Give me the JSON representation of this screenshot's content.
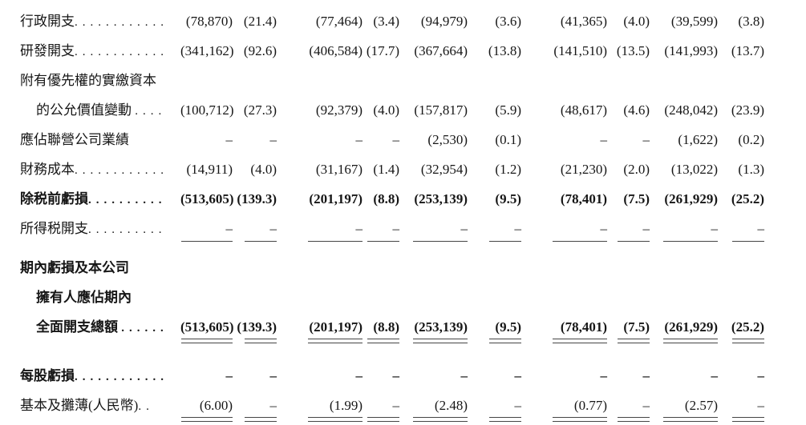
{
  "document": {
    "type": "financial-statement-table",
    "currency_note": "人民幣",
    "colors": {
      "text": "#161616",
      "background": "#ffffff",
      "rule": "#454545"
    }
  },
  "table": {
    "rows": [
      {
        "label": "行政開支",
        "leader": "............",
        "bold": false,
        "indent": false,
        "rule": "none",
        "gap": "",
        "cells": [
          "(78,870)",
          "(21.4)",
          "(77,464)",
          "(3.4)",
          "(94,979)",
          "(3.6)",
          "(41,365)",
          "(4.0)",
          "(39,599)",
          "(3.8)"
        ]
      },
      {
        "label": "研發開支",
        "leader": "............",
        "bold": false,
        "indent": false,
        "rule": "none",
        "gap": "",
        "cells": [
          "(341,162)",
          "(92.6)",
          "(406,584)",
          "(17.7)",
          "(367,664)",
          "(13.8)",
          "(141,510)",
          "(13.5)",
          "(141,993)",
          "(13.7)"
        ]
      },
      {
        "label": "附有優先權的實繳資本",
        "leader": "",
        "bold": false,
        "indent": false,
        "rule": "none",
        "gap": "",
        "cells": [
          "",
          "",
          "",
          "",
          "",
          "",
          "",
          "",
          "",
          ""
        ]
      },
      {
        "label": "的公允價值變動 ",
        "leader": "....",
        "bold": false,
        "indent": true,
        "rule": "none",
        "gap": "",
        "cells": [
          "(100,712)",
          "(27.3)",
          "(92,379)",
          "(4.0)",
          "(157,817)",
          "(5.9)",
          "(48,617)",
          "(4.6)",
          "(248,042)",
          "(23.9)"
        ]
      },
      {
        "label": "應佔聯營公司業績",
        "leader": "",
        "bold": false,
        "indent": false,
        "rule": "none",
        "gap": "",
        "cells": [
          "–",
          "–",
          "–",
          "–",
          "(2,530)",
          "(0.1)",
          "–",
          "–",
          "(1,622)",
          "(0.2)"
        ]
      },
      {
        "label": "財務成本",
        "leader": "............",
        "bold": false,
        "indent": false,
        "rule": "none",
        "gap": "",
        "cells": [
          "(14,911)",
          "(4.0)",
          "(31,167)",
          "(1.4)",
          "(32,954)",
          "(1.2)",
          "(21,230)",
          "(2.0)",
          "(13,022)",
          "(1.3)"
        ]
      },
      {
        "label": "除税前虧損",
        "leader": "..........",
        "bold": true,
        "indent": false,
        "rule": "none",
        "gap": "",
        "cells": [
          "(513,605)",
          "(139.3)",
          "(201,197)",
          "(8.8)",
          "(253,139)",
          "(9.5)",
          "(78,401)",
          "(7.5)",
          "(261,929)",
          "(25.2)"
        ]
      },
      {
        "label": "所得税開支",
        "leader": "..........",
        "bold": false,
        "indent": false,
        "rule": "single",
        "gap": "lg",
        "cells": [
          "–",
          "–",
          "–",
          "–",
          "–",
          "–",
          "–",
          "–",
          "–",
          "–"
        ]
      },
      {
        "label": "期內虧損及本公司",
        "leader": "",
        "bold": true,
        "indent": false,
        "rule": "none",
        "gap": "",
        "cells": [
          "",
          "",
          "",
          "",
          "",
          "",
          "",
          "",
          "",
          ""
        ]
      },
      {
        "label": "擁有人應佔期內",
        "leader": "",
        "bold": true,
        "indent": true,
        "rule": "none",
        "gap": "",
        "cells": [
          "",
          "",
          "",
          "",
          "",
          "",
          "",
          "",
          "",
          ""
        ]
      },
      {
        "label": "全面開支總額 ",
        "leader": "......",
        "bold": true,
        "indent": true,
        "rule": "double",
        "gap": "xl",
        "cells": [
          "(513,605)",
          "(139.3)",
          "(201,197)",
          "(8.8)",
          "(253,139)",
          "(9.5)",
          "(78,401)",
          "(7.5)",
          "(261,929)",
          "(25.2)"
        ]
      },
      {
        "label": "每股虧損",
        "leader": "............",
        "bold": true,
        "indent": false,
        "rule": "none",
        "gap": "",
        "cells": [
          "–",
          "–",
          "–",
          "–",
          "–",
          "–",
          "–",
          "–",
          "–",
          "–"
        ]
      },
      {
        "label": "基本及攤薄(人民幣)",
        "leader": "..",
        "bold": false,
        "indent": false,
        "rule": "double",
        "gap": "",
        "cells": [
          "(6.00)",
          "–",
          "(1.99)",
          "–",
          "(2.48)",
          "–",
          "(0.77)",
          "–",
          "(2.57)",
          "–"
        ]
      }
    ]
  }
}
